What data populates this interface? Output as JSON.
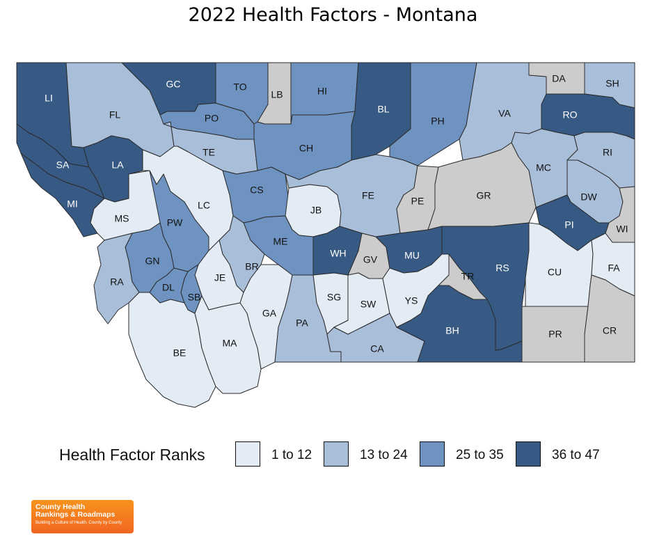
{
  "title": "2022 Health Factors - Montana",
  "legend": {
    "title": "Health Factor Ranks",
    "items": [
      {
        "label": "1 to 12",
        "color": "#e3ebf5"
      },
      {
        "label": "13 to 24",
        "color": "#a9bed9"
      },
      {
        "label": "25 to 35",
        "color": "#6f93c0"
      },
      {
        "label": "36 to 47",
        "color": "#375a85"
      }
    ],
    "no_data_color": "#cccccc"
  },
  "logo": {
    "line1": "County Health",
    "line2": "Rankings & Roadmaps",
    "line3": "Building a Culture of Health, County by County"
  },
  "counties": [
    {
      "abbr": "LI",
      "class": 4
    },
    {
      "abbr": "FL",
      "class": 2
    },
    {
      "abbr": "GC",
      "class": 4
    },
    {
      "abbr": "TO",
      "class": 3
    },
    {
      "abbr": "LB",
      "class": 0
    },
    {
      "abbr": "HI",
      "class": 3
    },
    {
      "abbr": "BL",
      "class": 4
    },
    {
      "abbr": "PH",
      "class": 3
    },
    {
      "abbr": "VA",
      "class": 2
    },
    {
      "abbr": "DA",
      "class": 0
    },
    {
      "abbr": "SH",
      "class": 2
    },
    {
      "abbr": "RO",
      "class": 4
    },
    {
      "abbr": "PO",
      "class": 3
    },
    {
      "abbr": "SA",
      "class": 4
    },
    {
      "abbr": "LA",
      "class": 4
    },
    {
      "abbr": "TE",
      "class": 2
    },
    {
      "abbr": "CH",
      "class": 3
    },
    {
      "abbr": "MC",
      "class": 2
    },
    {
      "abbr": "RI",
      "class": 2
    },
    {
      "abbr": "MI",
      "class": 4
    },
    {
      "abbr": "MS",
      "class": 1
    },
    {
      "abbr": "LC",
      "class": 1
    },
    {
      "abbr": "CS",
      "class": 3
    },
    {
      "abbr": "JB",
      "class": 1
    },
    {
      "abbr": "FE",
      "class": 2
    },
    {
      "abbr": "PE",
      "class": 0
    },
    {
      "abbr": "GR",
      "class": 0
    },
    {
      "abbr": "DW",
      "class": 2
    },
    {
      "abbr": "PW",
      "class": 3
    },
    {
      "abbr": "PI",
      "class": 4
    },
    {
      "abbr": "WI",
      "class": 0
    },
    {
      "abbr": "ME",
      "class": 3
    },
    {
      "abbr": "GN",
      "class": 3
    },
    {
      "abbr": "BR",
      "class": 2
    },
    {
      "abbr": "WH",
      "class": 4
    },
    {
      "abbr": "GV",
      "class": 0
    },
    {
      "abbr": "MU",
      "class": 4
    },
    {
      "abbr": "RS",
      "class": 4
    },
    {
      "abbr": "CU",
      "class": 1
    },
    {
      "abbr": "FA",
      "class": 1
    },
    {
      "abbr": "RA",
      "class": 2
    },
    {
      "abbr": "JE",
      "class": 1
    },
    {
      "abbr": "DL",
      "class": 3
    },
    {
      "abbr": "SB",
      "class": 3
    },
    {
      "abbr": "SG",
      "class": 1
    },
    {
      "abbr": "SW",
      "class": 1
    },
    {
      "abbr": "YS",
      "class": 1
    },
    {
      "abbr": "TR",
      "class": 0
    },
    {
      "abbr": "GA",
      "class": 1
    },
    {
      "abbr": "PA",
      "class": 2
    },
    {
      "abbr": "BE",
      "class": 1
    },
    {
      "abbr": "MA",
      "class": 1
    },
    {
      "abbr": "CA",
      "class": 2
    },
    {
      "abbr": "BH",
      "class": 4
    },
    {
      "abbr": "PR",
      "class": 0
    },
    {
      "abbr": "CR",
      "class": 0
    }
  ]
}
